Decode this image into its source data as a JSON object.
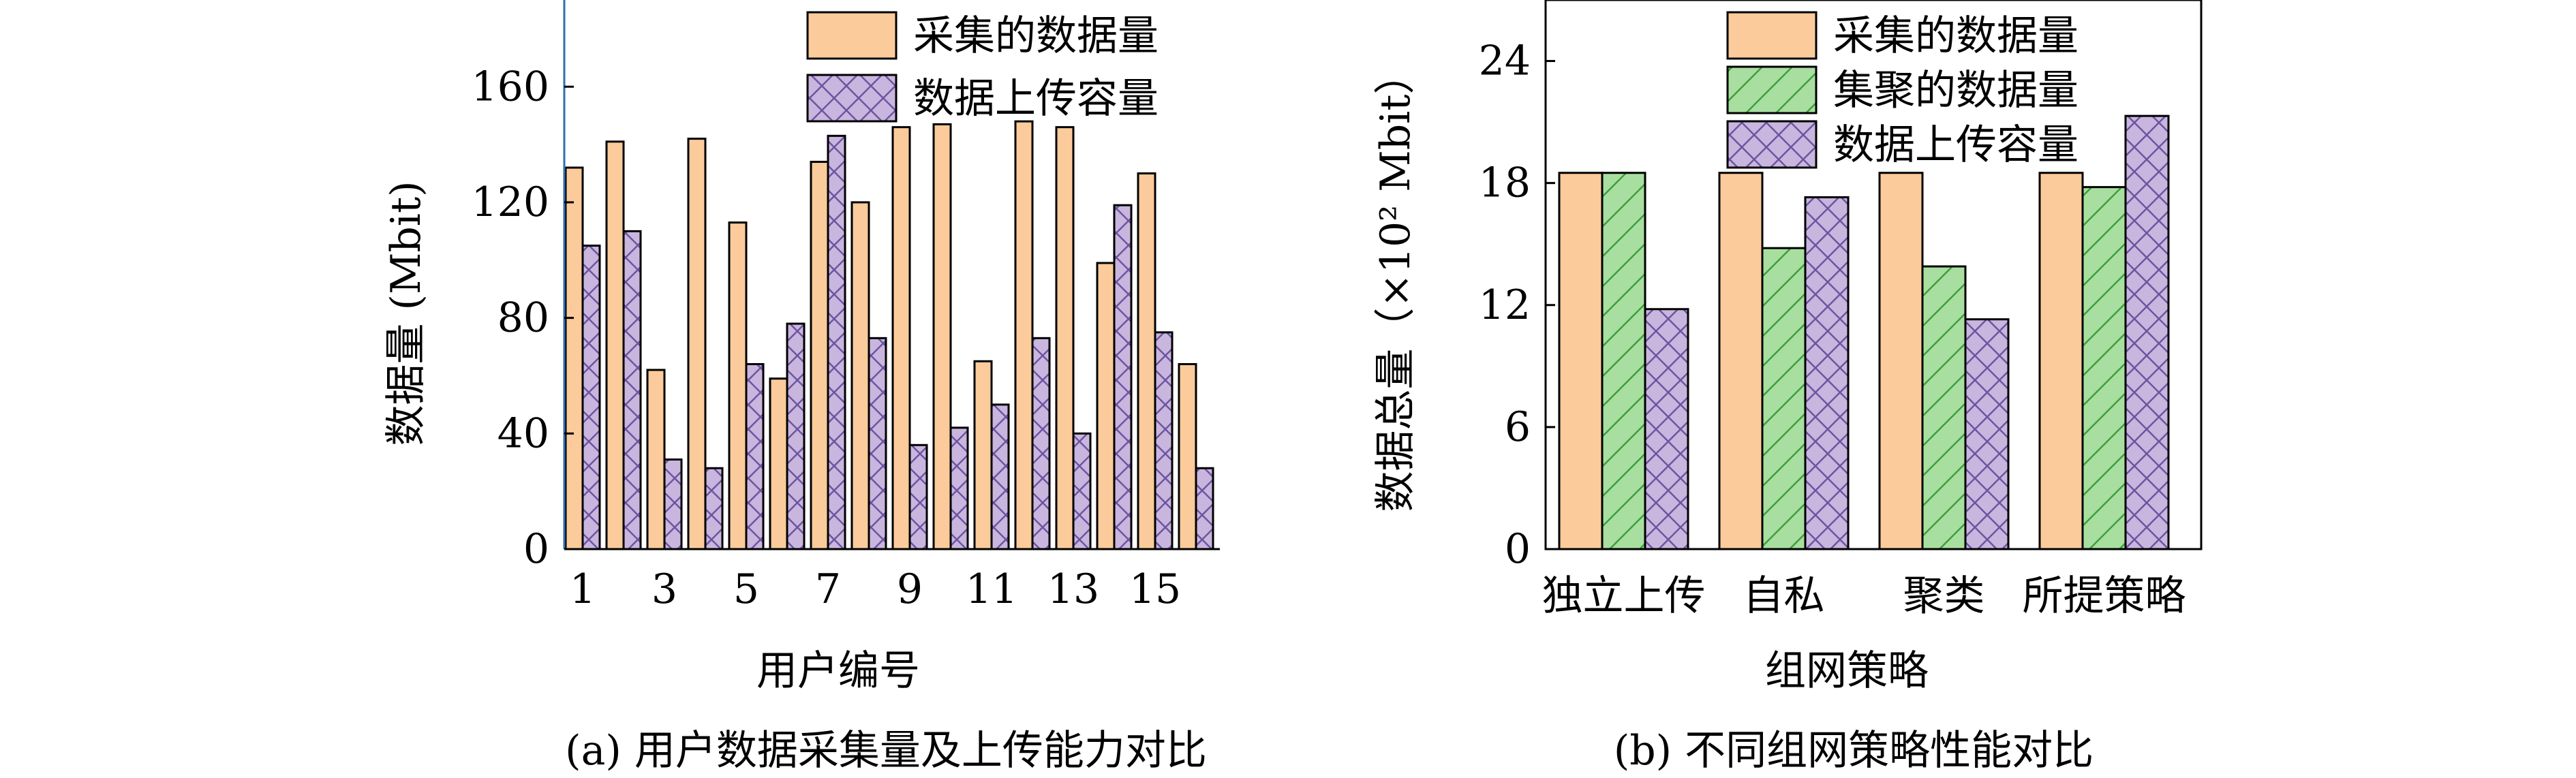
{
  "colors": {
    "collected": "#FCCB9B",
    "aggregated": "#A8DFA0",
    "uploaded": "#C9B6DE",
    "hatch_green": "#3E9E3E",
    "hatch_purple": "#6E54A0",
    "axis": "#000000",
    "left_axis_a": "#2E6FB0"
  },
  "chart_data": [
    {
      "type": "bar",
      "ylabel": "数据量 (Mbit)",
      "xlabel": "用户编号",
      "caption": "(a) 用户数据采集量及上传能力对比",
      "ylim": [
        0,
        190
      ],
      "yticks": [
        0,
        40,
        80,
        120,
        160
      ],
      "categories": [
        "1",
        "2",
        "3",
        "4",
        "5",
        "6",
        "7",
        "8",
        "9",
        "10",
        "11",
        "12",
        "13",
        "14",
        "15",
        "16"
      ],
      "tick_labels": [
        "1",
        "3",
        "5",
        "7",
        "9",
        "11",
        "13",
        "15"
      ],
      "series": [
        {
          "name": "采集的数据量",
          "key": "collected",
          "values": [
            132,
            141,
            62,
            142,
            113,
            59,
            134,
            120,
            146,
            147,
            65,
            148,
            146,
            99,
            130,
            64
          ]
        },
        {
          "name": "数据上传容量",
          "key": "uploaded",
          "values": [
            105,
            110,
            31,
            28,
            64,
            78,
            143,
            73,
            36,
            42,
            50,
            73,
            40,
            119,
            75,
            28
          ]
        }
      ],
      "legend": "top-right"
    },
    {
      "type": "bar",
      "ylabel": "数据总量（×10² Mbit）",
      "xlabel": "组网策略",
      "caption": "(b) 不同组网策略性能对比",
      "ylim": [
        0,
        27
      ],
      "yticks": [
        0,
        6,
        12,
        18,
        24
      ],
      "categories": [
        "独立上传",
        "自私",
        "聚类",
        "所提策略"
      ],
      "series": [
        {
          "name": "采集的数据量",
          "key": "collected",
          "values": [
            18.5,
            18.5,
            18.5,
            18.5
          ]
        },
        {
          "name": "集聚的数据量",
          "key": "aggregated",
          "values": [
            18.5,
            14.8,
            13.9,
            17.8
          ]
        },
        {
          "name": "数据上传容量",
          "key": "uploaded",
          "values": [
            11.8,
            17.3,
            11.3,
            21.3
          ]
        }
      ],
      "legend": "top-right"
    }
  ]
}
